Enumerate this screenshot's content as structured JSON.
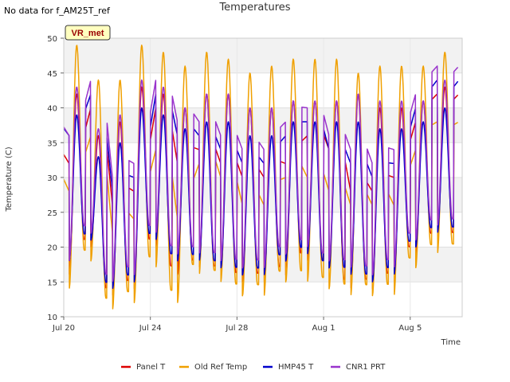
{
  "note": "No data for f_AM25T_ref",
  "chart_data": {
    "type": "line",
    "title": "Temperatures",
    "xlabel": "Time",
    "ylabel": "Temperature (C)",
    "ylim": [
      10,
      50
    ],
    "yticks": [
      10,
      15,
      20,
      25,
      30,
      35,
      40,
      45,
      50
    ],
    "xlim_days": [
      0,
      18.4
    ],
    "xticks": [
      {
        "label": "Jul 20",
        "day": 0
      },
      {
        "label": "Jul 24",
        "day": 4
      },
      {
        "label": "Jul 28",
        "day": 8
      },
      {
        "label": "Aug 1",
        "day": 12
      },
      {
        "label": "Aug 5",
        "day": 16
      }
    ],
    "grid": true,
    "banded_background": true,
    "legend_position": "bottom",
    "site_badge": "VR_met",
    "colors": {
      "Panel T": "#dd0000",
      "Old Ref Temp": "#f0a000",
      "HMP45 T": "#0000cc",
      "CNR1 PRT": "#9933cc",
      "badge_bg": "#ffffc0",
      "badge_text": "#990000"
    },
    "series": [
      {
        "name": "Panel T",
        "daily_max": [
          42,
          36,
          38,
          43,
          42,
          40,
          42,
          42,
          40,
          40,
          41,
          41,
          41,
          42,
          40,
          40,
          41,
          43
        ],
        "daily_min": [
          16,
          20,
          13,
          14,
          20,
          16,
          17,
          16,
          15,
          15,
          16,
          18,
          17,
          14,
          14,
          15,
          19,
          21
        ]
      },
      {
        "name": "Old Ref Temp",
        "daily_max": [
          49,
          44,
          44,
          49,
          48,
          46,
          48,
          47,
          45,
          46,
          47,
          47,
          47,
          45,
          46,
          46,
          46,
          48
        ],
        "daily_min": [
          14,
          18,
          11,
          12,
          17,
          12,
          16,
          15,
          13,
          13,
          15,
          15,
          14,
          13,
          13,
          13,
          17,
          19
        ]
      },
      {
        "name": "HMP45 T",
        "daily_max": [
          39,
          33,
          35,
          40,
          39,
          37,
          38,
          38,
          36,
          36,
          38,
          38,
          38,
          38,
          37,
          37,
          38,
          40
        ],
        "daily_min": [
          18,
          21,
          14,
          15,
          21,
          18,
          18,
          17,
          16,
          16,
          18,
          19,
          17,
          16,
          15,
          16,
          20,
          22
        ]
      },
      {
        "name": "CNR1 PRT",
        "daily_max": [
          43,
          37,
          39,
          44,
          43,
          40,
          42,
          42,
          40,
          40,
          41,
          41,
          41,
          42,
          41,
          41,
          41,
          44
        ],
        "daily_min": [
          18,
          22,
          15,
          16,
          22,
          19,
          19,
          18,
          17,
          17,
          19,
          20,
          18,
          17,
          16,
          17,
          21,
          23
        ]
      }
    ]
  }
}
